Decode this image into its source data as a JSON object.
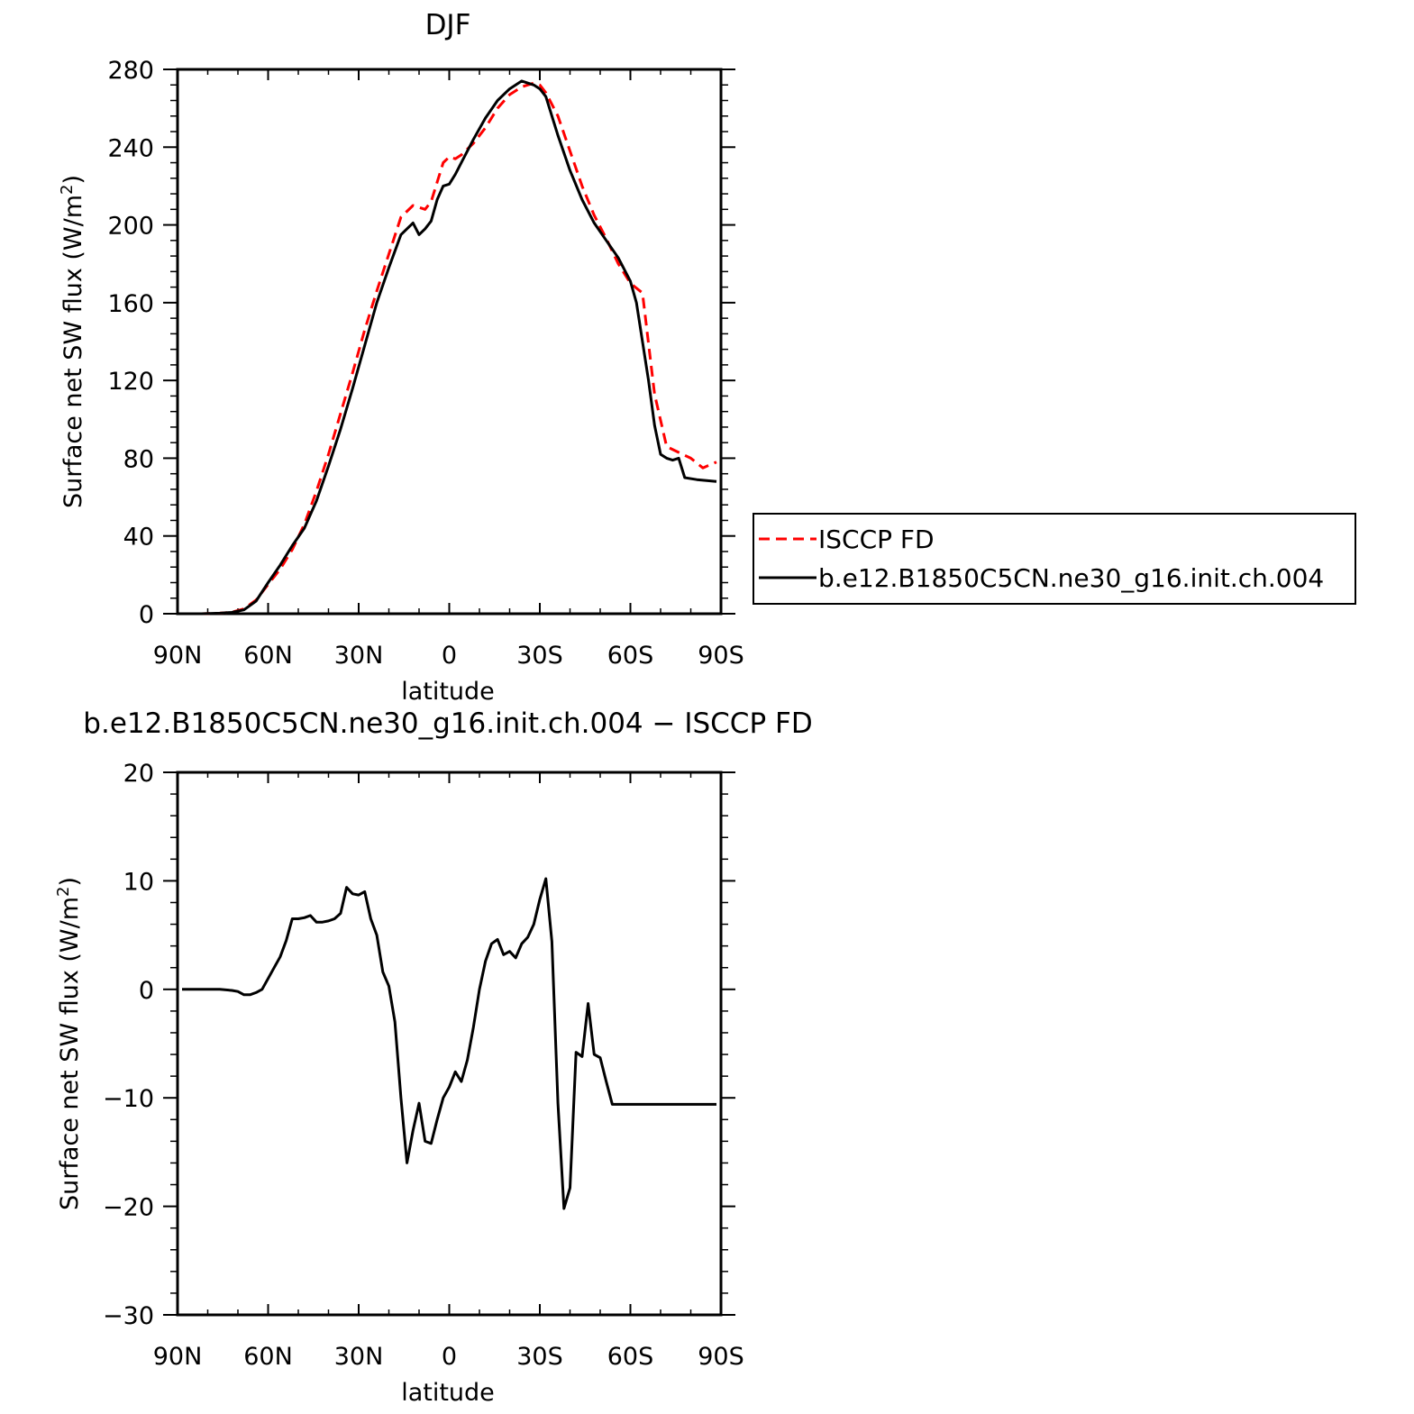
{
  "chart_data": [
    {
      "type": "line",
      "title": "DJF",
      "xlabel": "latitude",
      "ylabel": "Surface net SW flux (W/m²)",
      "ylabel_parts": {
        "main": "Surface net SW flux (W/m",
        "sup": "2",
        "end": ")"
      },
      "xlim": [
        90,
        -90
      ],
      "ylim": [
        0,
        280
      ],
      "x_ticks": [
        {
          "value": 90,
          "label": "90N"
        },
        {
          "value": 60,
          "label": "60N"
        },
        {
          "value": 30,
          "label": "30N"
        },
        {
          "value": 0,
          "label": "0"
        },
        {
          "value": -30,
          "label": "30S"
        },
        {
          "value": -60,
          "label": "60S"
        },
        {
          "value": -90,
          "label": "90S"
        }
      ],
      "y_ticks": [
        {
          "value": 0,
          "label": "0"
        },
        {
          "value": 40,
          "label": "40"
        },
        {
          "value": 80,
          "label": "80"
        },
        {
          "value": 120,
          "label": "120"
        },
        {
          "value": 160,
          "label": "160"
        },
        {
          "value": 200,
          "label": "200"
        },
        {
          "value": 240,
          "label": "240"
        },
        {
          "value": 280,
          "label": "280"
        }
      ],
      "legend_position": "right",
      "series": [
        {
          "name": "ISCCP FD",
          "color": "#ff0000",
          "dash": "dashed",
          "x": [
            88.5,
            82,
            76,
            72,
            68,
            64,
            60,
            56,
            52,
            48,
            44,
            40,
            36,
            32,
            28,
            24,
            20,
            16,
            12,
            8,
            6,
            4,
            2,
            0,
            -2,
            -4,
            -8,
            -12,
            -16,
            -20,
            -24,
            -28,
            -30,
            -32,
            -36,
            -40,
            -44,
            -48,
            -52,
            -56,
            -60,
            -64,
            -68,
            -72,
            -76,
            -80,
            -84,
            -88.5
          ],
          "y": [
            0,
            0,
            0.3,
            0.8,
            2.5,
            7,
            15,
            23,
            33,
            46,
            63,
            82,
            103,
            124,
            146,
            166,
            185,
            204,
            210,
            208,
            212,
            222,
            232,
            235,
            234,
            236,
            242,
            250,
            260,
            267,
            271,
            273,
            272,
            268,
            256,
            238,
            220,
            205,
            193,
            180,
            170,
            165,
            113,
            86,
            83,
            80,
            75,
            78
          ]
        },
        {
          "name": "b.e12.B1850C5CN.ne30_g16.init.ch.004",
          "color": "#000000",
          "dash": "solid",
          "x": [
            88.5,
            82,
            76,
            72,
            68,
            64,
            60,
            56,
            52,
            48,
            44,
            40,
            36,
            32,
            28,
            24,
            20,
            16,
            12,
            10,
            8,
            6,
            4,
            2,
            0,
            -2,
            -4,
            -8,
            -12,
            -16,
            -20,
            -24,
            -28,
            -30,
            -32,
            -36,
            -40,
            -44,
            -48,
            -52,
            -56,
            -60,
            -62,
            -66,
            -68,
            -70,
            -72,
            -74,
            -76,
            -78,
            -82,
            -88.5
          ],
          "y": [
            0,
            0,
            0.3,
            0.7,
            2,
            6.5,
            16,
            25,
            35,
            44,
            58,
            76,
            95,
            116,
            138,
            160,
            178,
            195,
            201,
            195,
            198,
            202,
            213,
            220,
            221,
            226,
            232,
            244,
            255,
            264,
            270,
            274,
            272,
            270,
            266,
            246,
            228,
            213,
            201,
            192,
            183,
            171,
            160,
            120,
            97,
            82,
            80,
            79,
            80,
            70,
            69,
            68
          ]
        }
      ]
    },
    {
      "type": "line",
      "title": "b.e12.B1850C5CN.ne30_g16.init.ch.004 − ISCCP FD",
      "xlabel": "latitude",
      "ylabel": "Surface net SW flux (W/m²)",
      "ylabel_parts": {
        "main": "Surface net SW flux (W/m",
        "sup": "2",
        "end": ")"
      },
      "xlim": [
        90,
        -90
      ],
      "ylim": [
        -30,
        20
      ],
      "x_ticks": [
        {
          "value": 90,
          "label": "90N"
        },
        {
          "value": 60,
          "label": "60N"
        },
        {
          "value": 30,
          "label": "30N"
        },
        {
          "value": 0,
          "label": "0"
        },
        {
          "value": -30,
          "label": "30S"
        },
        {
          "value": -60,
          "label": "60S"
        },
        {
          "value": -90,
          "label": "90S"
        }
      ],
      "y_ticks": [
        {
          "value": -30,
          "label": "−30"
        },
        {
          "value": -20,
          "label": "−20"
        },
        {
          "value": -10,
          "label": "−10"
        },
        {
          "value": 0,
          "label": "0"
        },
        {
          "value": 10,
          "label": "10"
        },
        {
          "value": 20,
          "label": "20"
        }
      ],
      "series": [
        {
          "name": "",
          "color": "#000000",
          "dash": "solid",
          "x": [
            88.5,
            82,
            76,
            72,
            70,
            68,
            66,
            64,
            62,
            60,
            58,
            56,
            54,
            52,
            50,
            48,
            46,
            44,
            42,
            40,
            38,
            36,
            34,
            32,
            30,
            28,
            26,
            24,
            22,
            20,
            18,
            16,
            14,
            12,
            10,
            8,
            6,
            4,
            2,
            0,
            -2,
            -4,
            -6,
            -8,
            -10,
            -12,
            -14,
            -16,
            -18,
            -20,
            -22,
            -24,
            -26,
            -28,
            -30,
            -32,
            -34,
            -36,
            -38,
            -40,
            -42,
            -44,
            -46,
            -48,
            -50,
            -52,
            -54,
            -56,
            -58,
            -60,
            -62,
            -64,
            -66,
            -68,
            -70,
            -72,
            -74,
            -76,
            -78,
            -80,
            -82,
            -84,
            -86,
            -88.5
          ],
          "y": [
            0,
            0,
            0,
            -0.1,
            -0.2,
            -0.5,
            -0.5,
            -0.3,
            0,
            1,
            2,
            3,
            4.5,
            6.5,
            6.5,
            6.6,
            6.8,
            6.2,
            6.2,
            6.3,
            6.5,
            7.0,
            9.4,
            8.8,
            8.7,
            9.0,
            6.5,
            5.0,
            1.6,
            0.3,
            -3.0,
            -10,
            -16,
            -13,
            -10.5,
            -14,
            -14.2,
            -12,
            -10,
            -9,
            -7.6,
            -8.5,
            -6.5,
            -3.5,
            0,
            2.6,
            4.2,
            4.6,
            3.2,
            3.5,
            2.9,
            4.2,
            4.8,
            6.0,
            8.3,
            10.2,
            4.4,
            -10.5,
            -20.2,
            -18.3,
            -5.8,
            -6.2,
            -1.3,
            -6.0,
            -6.3,
            -8.5,
            -10.6,
            -10.6,
            -10.6,
            -10.6,
            -10.6,
            -10.6,
            -10.6,
            -10.6,
            -10.6,
            -10.6,
            -10.6,
            -10.6,
            -10.6,
            -10.6,
            -10.6,
            -10.6,
            -10.6,
            -10.6
          ]
        }
      ]
    }
  ]
}
